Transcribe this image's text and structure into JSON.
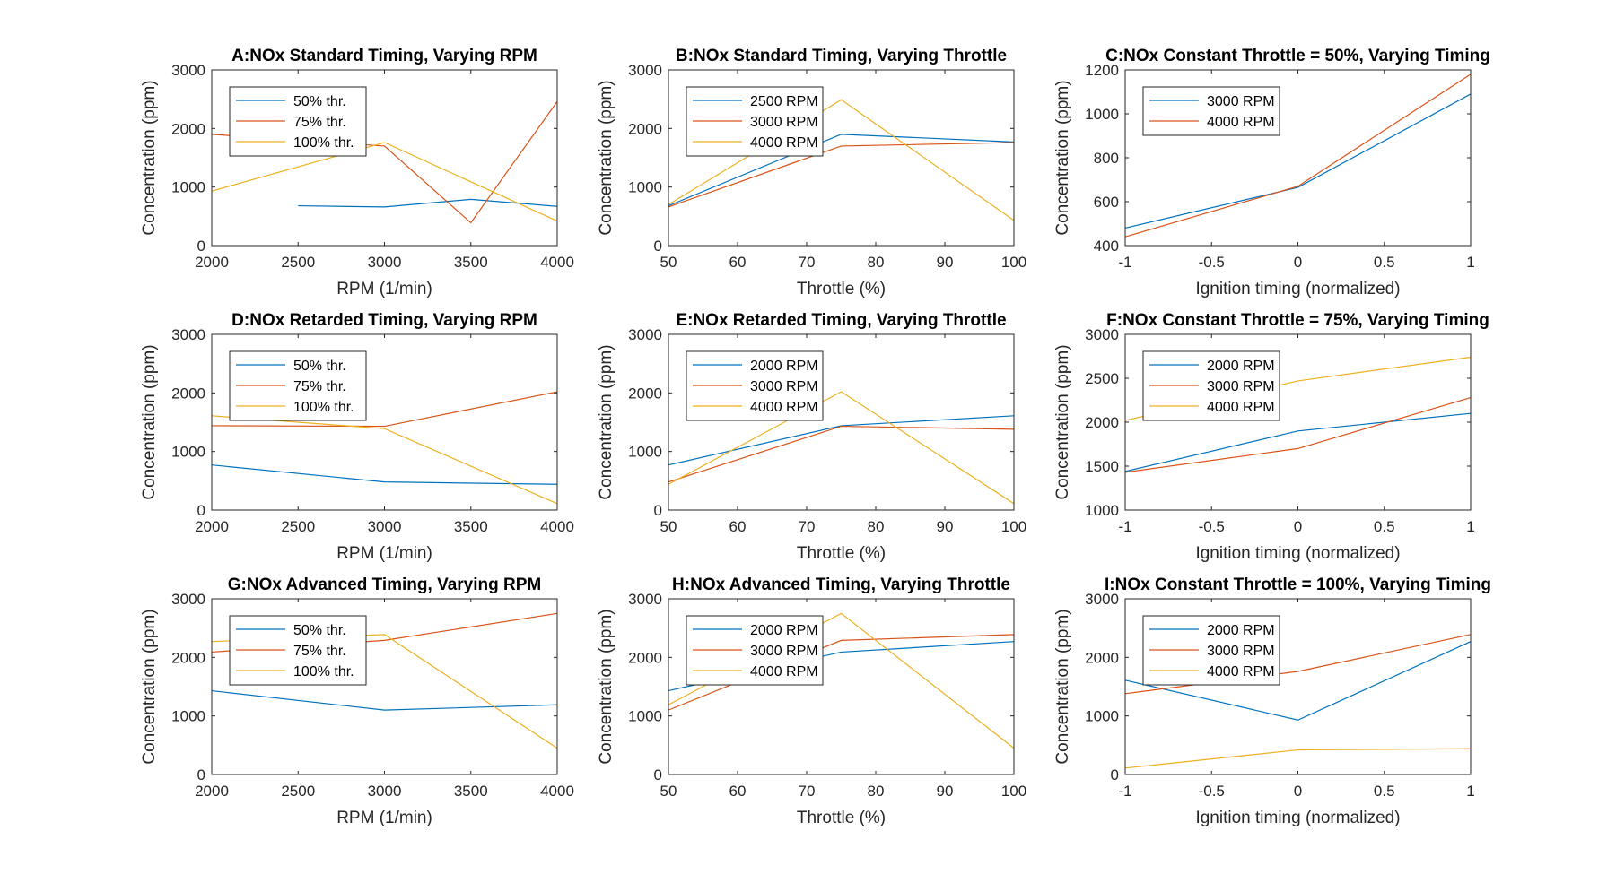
{
  "chart_data": [
    {
      "type": "line",
      "title": "A:NOx Standard Timing, Varying RPM",
      "xlabel": "RPM (1/min)",
      "ylabel": "Concentration (ppm)",
      "xlim": [
        2000,
        4000
      ],
      "ylim": [
        0,
        3000
      ],
      "xticks": [
        2000,
        2500,
        3000,
        3500,
        4000
      ],
      "yticks": [
        0,
        1000,
        2000,
        3000
      ],
      "legend": "top-left",
      "series": [
        {
          "name": "50% thr.",
          "color": "#0072BD",
          "x": [
            2500,
            3000,
            3500,
            4000
          ],
          "y": [
            680,
            660,
            790,
            670
          ]
        },
        {
          "name": "75% thr.",
          "color": "#D95319",
          "x": [
            2000,
            3000,
            3500,
            4000
          ],
          "y": [
            1900,
            1700,
            390,
            2460
          ]
        },
        {
          "name": "100% thr.",
          "color": "#EDB120",
          "x": [
            2000,
            3000,
            4000
          ],
          "y": [
            930,
            1760,
            420
          ]
        }
      ]
    },
    {
      "type": "line",
      "title": "B:NOx Standard Timing, Varying Throttle",
      "xlabel": "Throttle (%)",
      "ylabel": "Concentration (ppm)",
      "xlim": [
        50,
        100
      ],
      "ylim": [
        0,
        3000
      ],
      "xticks": [
        50,
        60,
        70,
        80,
        90,
        100
      ],
      "yticks": [
        0,
        1000,
        2000,
        3000
      ],
      "legend": "top-left",
      "series": [
        {
          "name": "2500 RPM",
          "color": "#0072BD",
          "x": [
            50,
            75,
            100
          ],
          "y": [
            680,
            1900,
            1770
          ]
        },
        {
          "name": "3000 RPM",
          "color": "#D95319",
          "x": [
            50,
            75,
            100
          ],
          "y": [
            660,
            1700,
            1760
          ]
        },
        {
          "name": "4000 RPM",
          "color": "#EDB120",
          "x": [
            50,
            75,
            100
          ],
          "y": [
            700,
            2490,
            430
          ]
        }
      ]
    },
    {
      "type": "line",
      "title": "C:NOx Constant Throttle = 50%, Varying Timing",
      "xlabel": "Ignition timing (normalized)",
      "ylabel": "Concentration (ppm)",
      "xlim": [
        -1,
        1
      ],
      "ylim": [
        400,
        1200
      ],
      "xticks": [
        -1,
        -0.5,
        0,
        0.5,
        1
      ],
      "yticks": [
        400,
        600,
        800,
        1000,
        1200
      ],
      "legend": "top-left",
      "series": [
        {
          "name": "3000 RPM",
          "color": "#0072BD",
          "x": [
            -1,
            0,
            1
          ],
          "y": [
            480,
            665,
            1090
          ]
        },
        {
          "name": "4000 RPM",
          "color": "#D95319",
          "x": [
            -1,
            0,
            1
          ],
          "y": [
            440,
            670,
            1180
          ]
        }
      ]
    },
    {
      "type": "line",
      "title": "D:NOx Retarded Timing, Varying RPM",
      "xlabel": "RPM (1/min)",
      "ylabel": "Concentration (ppm)",
      "xlim": [
        2000,
        4000
      ],
      "ylim": [
        0,
        3000
      ],
      "xticks": [
        2000,
        2500,
        3000,
        3500,
        4000
      ],
      "yticks": [
        0,
        1000,
        2000,
        3000
      ],
      "legend": "top-left",
      "series": [
        {
          "name": "50% thr.",
          "color": "#0072BD",
          "x": [
            2000,
            3000,
            4000
          ],
          "y": [
            770,
            480,
            440
          ]
        },
        {
          "name": "75% thr.",
          "color": "#D95319",
          "x": [
            2000,
            3000,
            4000
          ],
          "y": [
            1440,
            1430,
            2020
          ]
        },
        {
          "name": "100% thr.",
          "color": "#EDB120",
          "x": [
            2000,
            3000,
            4000
          ],
          "y": [
            1610,
            1390,
            110
          ]
        }
      ]
    },
    {
      "type": "line",
      "title": "E:NOx Retarded Timing, Varying Throttle",
      "xlabel": "Throttle (%)",
      "ylabel": "Concentration (ppm)",
      "xlim": [
        50,
        100
      ],
      "ylim": [
        0,
        3000
      ],
      "xticks": [
        50,
        60,
        70,
        80,
        90,
        100
      ],
      "yticks": [
        0,
        1000,
        2000,
        3000
      ],
      "legend": "top-left",
      "series": [
        {
          "name": "2000 RPM",
          "color": "#0072BD",
          "x": [
            50,
            75,
            100
          ],
          "y": [
            770,
            1440,
            1610
          ]
        },
        {
          "name": "3000 RPM",
          "color": "#D95319",
          "x": [
            50,
            75,
            100
          ],
          "y": [
            480,
            1430,
            1380
          ]
        },
        {
          "name": "4000 RPM",
          "color": "#EDB120",
          "x": [
            50,
            75,
            100
          ],
          "y": [
            440,
            2020,
            110
          ]
        }
      ]
    },
    {
      "type": "line",
      "title": "F:NOx Constant Throttle = 75%, Varying Timing",
      "xlabel": "Ignition timing (normalized)",
      "ylabel": "Concentration (ppm)",
      "xlim": [
        -1,
        1
      ],
      "ylim": [
        1000,
        3000
      ],
      "xticks": [
        -1,
        -0.5,
        0,
        0.5,
        1
      ],
      "yticks": [
        1000,
        1500,
        2000,
        2500,
        3000
      ],
      "legend": "top-left",
      "series": [
        {
          "name": "2000 RPM",
          "color": "#0072BD",
          "x": [
            -1,
            0,
            1
          ],
          "y": [
            1440,
            1900,
            2100
          ]
        },
        {
          "name": "3000 RPM",
          "color": "#D95319",
          "x": [
            -1,
            0,
            1
          ],
          "y": [
            1430,
            1700,
            2280
          ]
        },
        {
          "name": "4000 RPM",
          "color": "#EDB120",
          "x": [
            -1,
            0,
            1
          ],
          "y": [
            2020,
            2470,
            2740
          ]
        }
      ]
    },
    {
      "type": "line",
      "title": "G:NOx Advanced Timing, Varying RPM",
      "xlabel": "RPM (1/min)",
      "ylabel": "Concentration (ppm)",
      "xlim": [
        2000,
        4000
      ],
      "ylim": [
        0,
        3000
      ],
      "xticks": [
        2000,
        2500,
        3000,
        3500,
        4000
      ],
      "yticks": [
        0,
        1000,
        2000,
        3000
      ],
      "legend": "top-left",
      "series": [
        {
          "name": "50% thr.",
          "color": "#0072BD",
          "x": [
            2000,
            3000,
            4000
          ],
          "y": [
            1430,
            1100,
            1190
          ]
        },
        {
          "name": "75% thr.",
          "color": "#D95319",
          "x": [
            2000,
            3000,
            4000
          ],
          "y": [
            2090,
            2290,
            2750
          ]
        },
        {
          "name": "100% thr.",
          "color": "#EDB120",
          "x": [
            2000,
            3000,
            4000
          ],
          "y": [
            2270,
            2390,
            450
          ]
        }
      ]
    },
    {
      "type": "line",
      "title": "H:NOx Advanced Timing, Varying Throttle",
      "xlabel": "Throttle (%)",
      "ylabel": "Concentration (ppm)",
      "xlim": [
        50,
        100
      ],
      "ylim": [
        0,
        3000
      ],
      "xticks": [
        50,
        60,
        70,
        80,
        90,
        100
      ],
      "yticks": [
        0,
        1000,
        2000,
        3000
      ],
      "legend": "top-left",
      "series": [
        {
          "name": "2000 RPM",
          "color": "#0072BD",
          "x": [
            50,
            75,
            100
          ],
          "y": [
            1430,
            2090,
            2270
          ]
        },
        {
          "name": "3000 RPM",
          "color": "#D95319",
          "x": [
            50,
            75,
            100
          ],
          "y": [
            1100,
            2290,
            2390
          ]
        },
        {
          "name": "4000 RPM",
          "color": "#EDB120",
          "x": [
            50,
            75,
            100
          ],
          "y": [
            1190,
            2750,
            450
          ]
        }
      ]
    },
    {
      "type": "line",
      "title": "I:NOx Constant Throttle = 100%, Varying Timing",
      "xlabel": "Ignition timing (normalized)",
      "ylabel": "Concentration (ppm)",
      "xlim": [
        -1,
        1
      ],
      "ylim": [
        0,
        3000
      ],
      "xticks": [
        -1,
        -0.5,
        0,
        0.5,
        1
      ],
      "yticks": [
        0,
        1000,
        2000,
        3000
      ],
      "legend": "top-left",
      "series": [
        {
          "name": "2000 RPM",
          "color": "#0072BD",
          "x": [
            -1,
            0,
            1
          ],
          "y": [
            1610,
            930,
            2270
          ]
        },
        {
          "name": "3000 RPM",
          "color": "#D95319",
          "x": [
            -1,
            0,
            1
          ],
          "y": [
            1380,
            1760,
            2390
          ]
        },
        {
          "name": "4000 RPM",
          "color": "#EDB120",
          "x": [
            -1,
            0,
            1
          ],
          "y": [
            110,
            420,
            440
          ]
        }
      ]
    }
  ]
}
